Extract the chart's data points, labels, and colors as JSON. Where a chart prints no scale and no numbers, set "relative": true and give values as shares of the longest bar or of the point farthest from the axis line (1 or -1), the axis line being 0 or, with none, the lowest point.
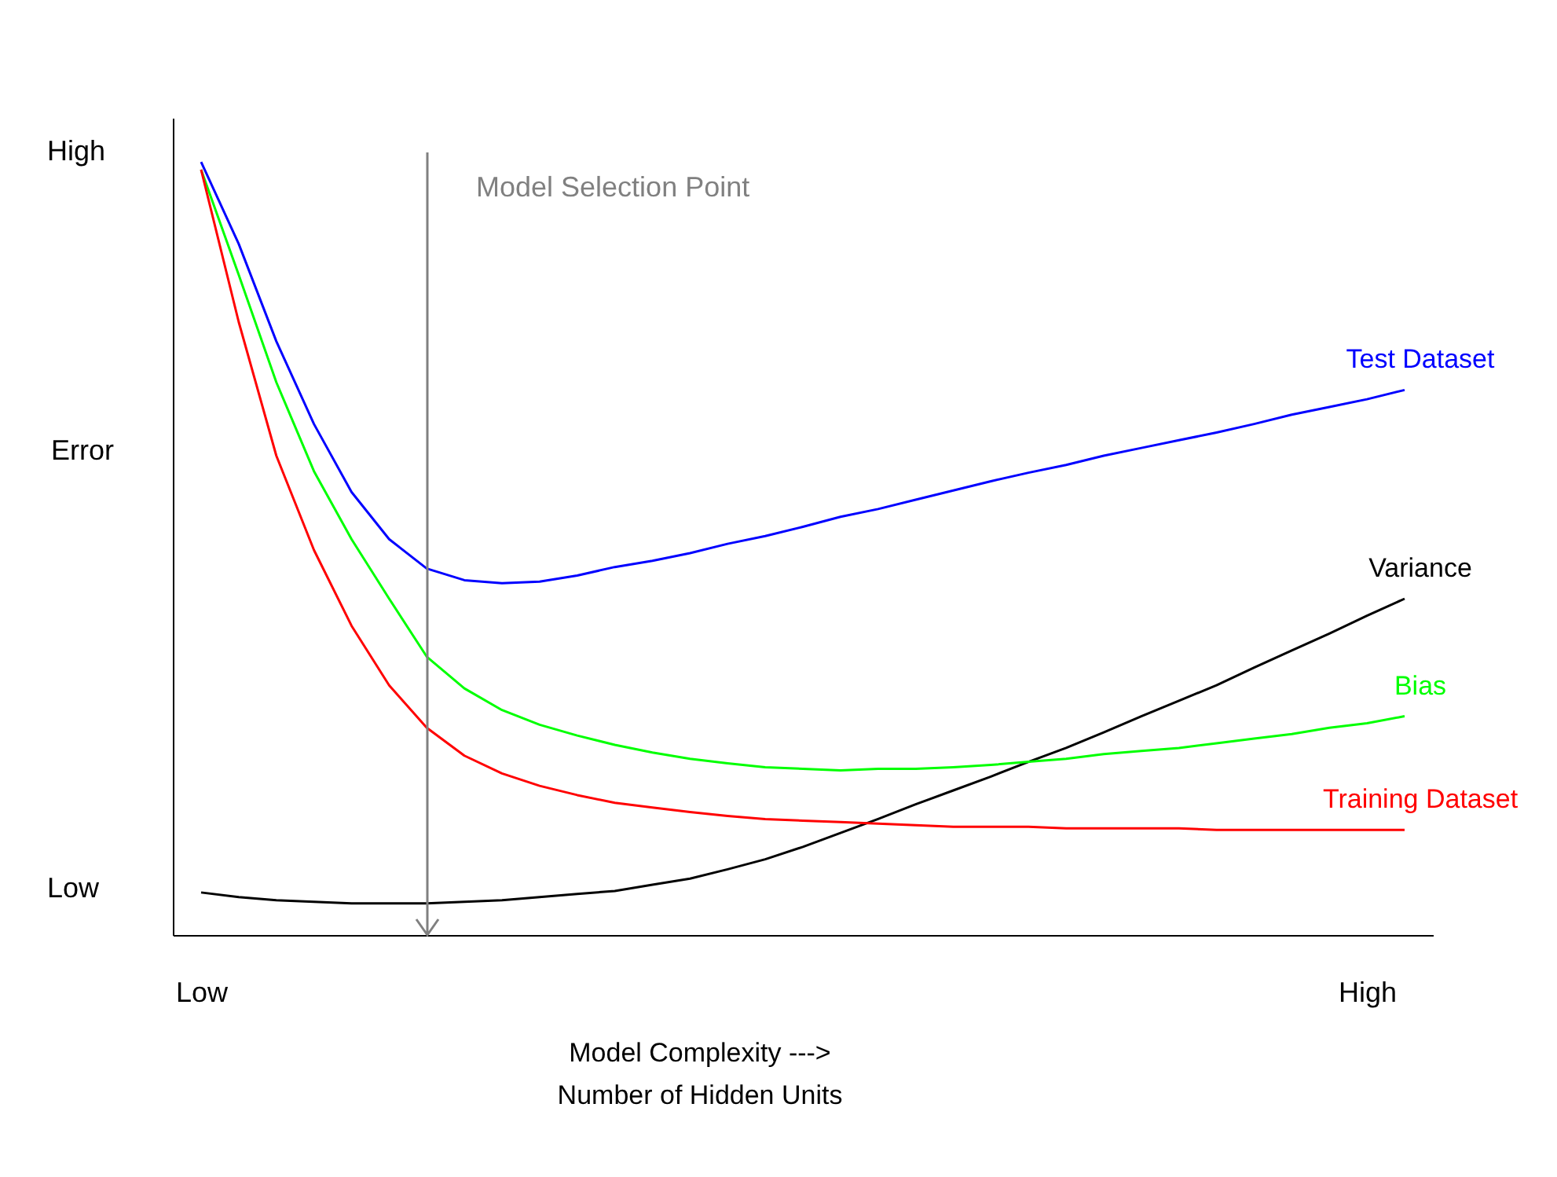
{
  "chart_data": {
    "type": "line",
    "relative": true,
    "xlabel": "Model Complexity --->\nNumber of Hidden Units",
    "ylabel": "Error",
    "annotations": [
      "High",
      "Low",
      "Model Selection Point"
    ],
    "categories": [
      "Low",
      null,
      null,
      null,
      null,
      null,
      null,
      null,
      null,
      null,
      null,
      null,
      null,
      null,
      null,
      null,
      null,
      null,
      null,
      null,
      null,
      null,
      null,
      null,
      null,
      null,
      null,
      null,
      null,
      null,
      null,
      "High",
      null
    ],
    "series": [
      {
        "name": "Test Dataset",
        "color": "#0000ff",
        "values": [
          1.0,
          0.894,
          0.768,
          0.661,
          0.573,
          0.512,
          0.474,
          0.459,
          0.455,
          0.457,
          0.465,
          0.476,
          0.484,
          0.494,
          0.506,
          0.516,
          0.528,
          0.541,
          0.551,
          0.563,
          0.575,
          0.587,
          0.598,
          0.608,
          0.62,
          0.63,
          0.64,
          0.65,
          0.661,
          0.673,
          0.683,
          0.693,
          0.705
        ]
      },
      {
        "name": "Variance",
        "color": "#000000",
        "values": [
          0.055,
          0.049,
          0.045,
          0.043,
          0.041,
          0.041,
          0.041,
          0.043,
          0.045,
          0.049,
          0.053,
          0.057,
          0.065,
          0.073,
          0.085,
          0.098,
          0.114,
          0.132,
          0.15,
          0.169,
          0.187,
          0.205,
          0.224,
          0.242,
          0.262,
          0.283,
          0.303,
          0.323,
          0.346,
          0.368,
          0.39,
          0.413,
          0.435
        ]
      },
      {
        "name": "Bias",
        "color": "#00ff00",
        "values": [
          0.99,
          0.854,
          0.715,
          0.6,
          0.512,
          0.435,
          0.36,
          0.319,
          0.291,
          0.272,
          0.258,
          0.246,
          0.236,
          0.228,
          0.222,
          0.217,
          0.215,
          0.213,
          0.215,
          0.215,
          0.217,
          0.22,
          0.224,
          0.228,
          0.234,
          0.238,
          0.242,
          0.248,
          0.254,
          0.26,
          0.268,
          0.274,
          0.283
        ]
      },
      {
        "name": "Training Dataset",
        "color": "#ff0000",
        "values": [
          0.99,
          0.793,
          0.62,
          0.498,
          0.4,
          0.323,
          0.268,
          0.232,
          0.209,
          0.193,
          0.181,
          0.171,
          0.165,
          0.159,
          0.154,
          0.15,
          0.148,
          0.146,
          0.144,
          0.142,
          0.14,
          0.14,
          0.14,
          0.138,
          0.138,
          0.138,
          0.138,
          0.136,
          0.136,
          0.136,
          0.136,
          0.136,
          0.136
        ]
      }
    ]
  }
}
